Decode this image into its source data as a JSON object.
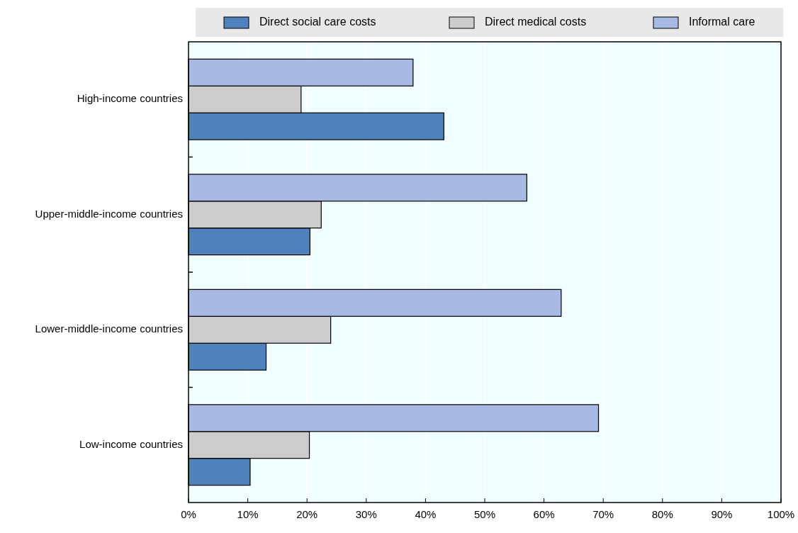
{
  "chart_data": {
    "type": "bar",
    "orientation": "horizontal",
    "categories": [
      "High-income countries",
      "Upper-middle-income countries",
      "Lower-middle-income countries",
      "Low-income countries"
    ],
    "series": [
      {
        "name": "Direct social care costs",
        "color": "#4f81bd",
        "values": [
          43.1,
          20.5,
          13.1,
          10.4
        ]
      },
      {
        "name": "Direct medical costs",
        "color": "#cccccc",
        "values": [
          19,
          22.4,
          24,
          20.4
        ]
      },
      {
        "name": "Informal care",
        "color": "#a8b9e3",
        "values": [
          37.9,
          57.1,
          62.9,
          69.2
        ]
      }
    ],
    "xlim": [
      0,
      100
    ],
    "xticks": [
      {
        "value": 0,
        "label": "0%"
      },
      {
        "value": 10,
        "label": "10%"
      },
      {
        "value": 20,
        "label": "20%"
      },
      {
        "value": 30,
        "label": "30%"
      },
      {
        "value": 40,
        "label": "40%"
      },
      {
        "value": 50,
        "label": "50%"
      },
      {
        "value": 60,
        "label": "60%"
      },
      {
        "value": 70,
        "label": "70%"
      },
      {
        "value": 80,
        "label": "80%"
      },
      {
        "value": 90,
        "label": "90%"
      },
      {
        "value": 100,
        "label": "100%"
      }
    ],
    "grid": "x",
    "legend": "top"
  }
}
